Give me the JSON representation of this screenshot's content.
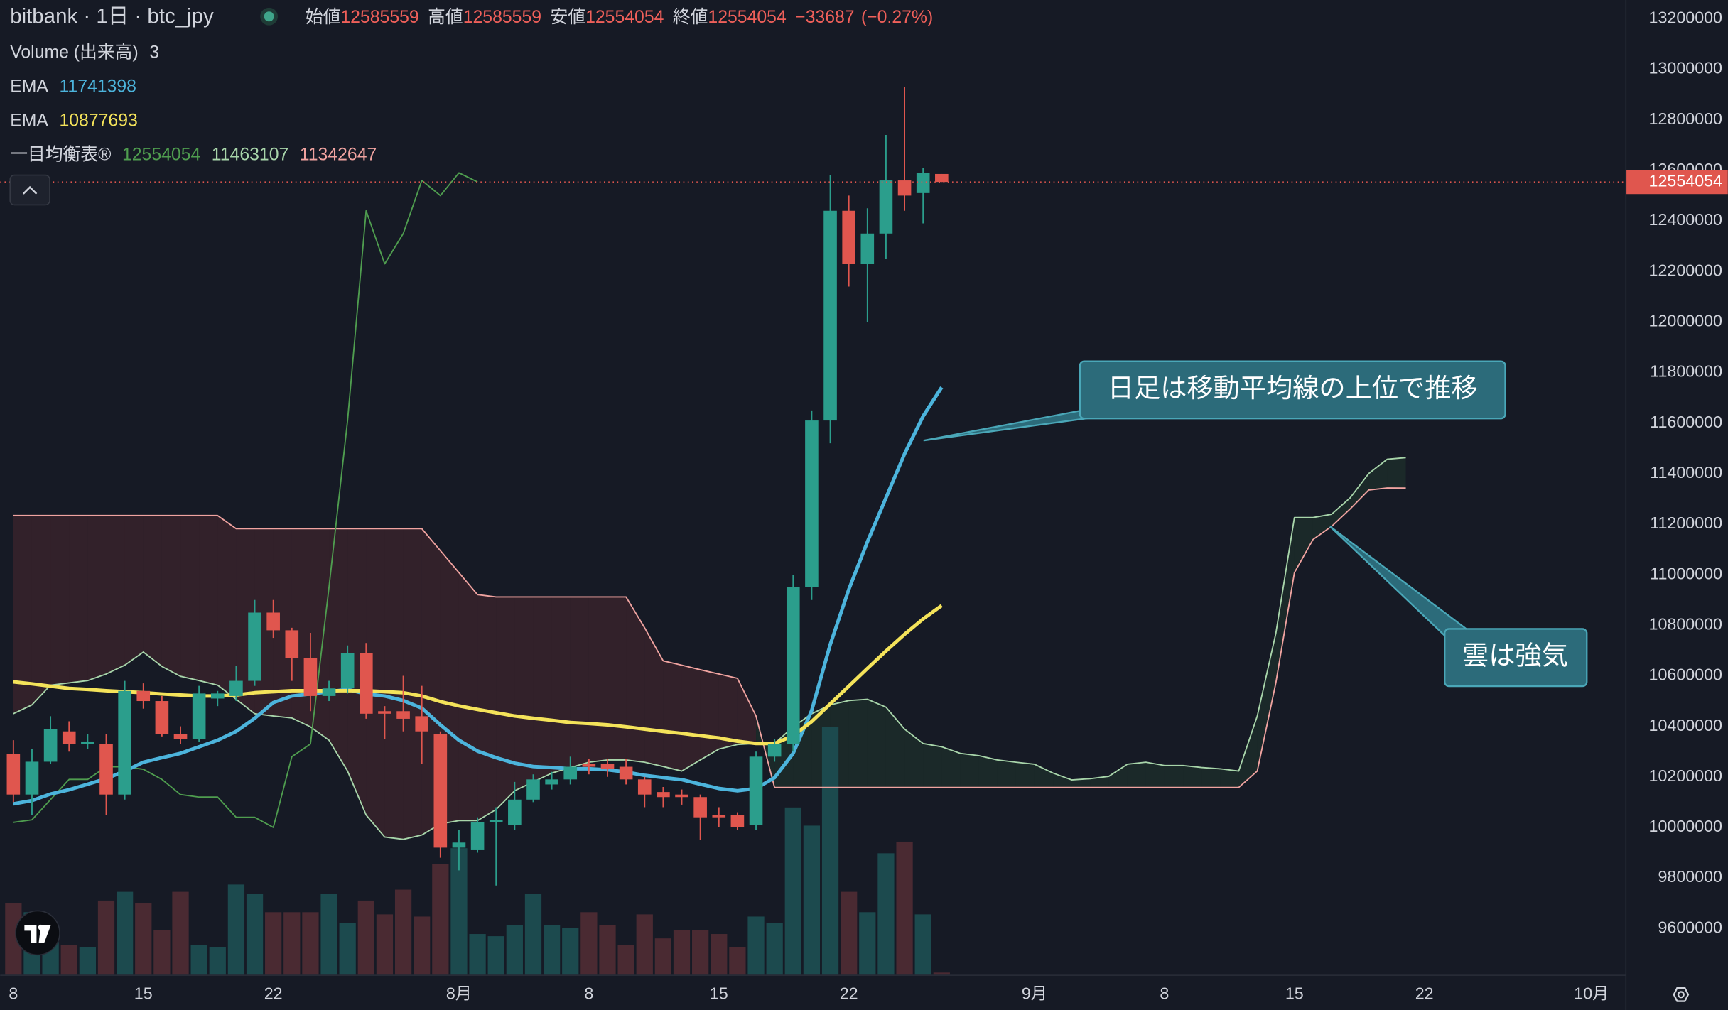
{
  "chart_data": {
    "type": "candlestick",
    "title": "bitbank · 1日 · btc_jpy",
    "header": {
      "open_label": "始値",
      "high_label": "高値",
      "low_label": "安値",
      "close_label": "終値",
      "change": {
        "value": -33687,
        "label": "−33687"
      },
      "change_pct": {
        "value": -0.27,
        "label": "(−0.27%)"
      }
    },
    "categories": [
      "8",
      null,
      null,
      null,
      null,
      null,
      null,
      "15",
      null,
      null,
      null,
      null,
      null,
      null,
      "22",
      null,
      null,
      null,
      null,
      null,
      null,
      null,
      null,
      null,
      "8月",
      null,
      null,
      null,
      null,
      null,
      null,
      "8",
      null,
      null,
      null,
      null,
      null,
      null,
      "15",
      null,
      null,
      null,
      null,
      null,
      null,
      "22",
      null,
      null,
      null,
      null,
      null,
      null,
      null,
      null,
      null,
      "9月",
      null,
      null,
      null,
      null,
      null,
      null,
      "8",
      null,
      null,
      null,
      null,
      null,
      null,
      "15",
      null,
      null,
      null,
      null,
      null,
      null,
      "22",
      null,
      null,
      null,
      null,
      null,
      null,
      null,
      null,
      "10月"
    ],
    "candles": {
      "up_color": "#2b9e8c",
      "down_color": "#e0564e",
      "open": [
        10290000,
        10130000,
        10260000,
        10380000,
        10330000,
        10330000,
        10130000,
        10540000,
        10500000,
        10370000,
        10350000,
        10510000,
        10520000,
        10580000,
        10850000,
        10780000,
        10670000,
        10520000,
        10550000,
        10690000,
        10460000,
        10460000,
        10440000,
        10370000,
        9920000,
        9910000,
        10020000,
        10010000,
        10110000,
        10170000,
        10190000,
        10250000,
        10250000,
        10240000,
        10190000,
        10140000,
        10130000,
        10120000,
        10050000,
        10050000,
        10010000,
        10280000,
        10330000,
        10950000,
        11610000,
        12440000,
        12230000,
        12350000,
        12560000,
        12510000,
        12585559,
        null,
        null,
        null,
        null,
        null,
        null,
        null,
        null,
        null,
        null,
        null,
        null,
        null,
        null,
        null,
        null,
        null,
        null,
        null,
        null,
        null,
        null,
        null,
        null,
        null,
        null,
        null,
        null,
        null,
        null,
        null,
        null,
        null,
        null,
        null
      ],
      "high": [
        10345000,
        10310000,
        10440000,
        10420000,
        10370000,
        10370000,
        10580000,
        10570000,
        10520000,
        10400000,
        10560000,
        10540000,
        10640000,
        10900000,
        10900000,
        10790000,
        10770000,
        10580000,
        10720000,
        10730000,
        10480000,
        10600000,
        10560000,
        10380000,
        9990000,
        10040000,
        10080000,
        10180000,
        10210000,
        10220000,
        10280000,
        10270000,
        10270000,
        10270000,
        10200000,
        10160000,
        10150000,
        10130000,
        10080000,
        10060000,
        10300000,
        10350000,
        11000000,
        11650000,
        12580000,
        12500000,
        12450000,
        12740000,
        12930000,
        12610000,
        12585559,
        null,
        null,
        null,
        null,
        null,
        null,
        null,
        null,
        null,
        null,
        null,
        null,
        null,
        null,
        null,
        null,
        null,
        null,
        null,
        null,
        null,
        null,
        null,
        null,
        null,
        null,
        null,
        null,
        null,
        null,
        null,
        null,
        null,
        null,
        null
      ],
      "low": [
        10100000,
        10050000,
        10250000,
        10300000,
        10310000,
        10050000,
        10110000,
        10470000,
        10360000,
        10330000,
        10340000,
        10480000,
        10500000,
        10560000,
        10750000,
        10580000,
        10460000,
        10500000,
        10530000,
        10430000,
        10350000,
        10380000,
        10250000,
        9880000,
        9830000,
        9900000,
        9770000,
        9990000,
        10100000,
        10150000,
        10170000,
        10210000,
        10200000,
        10170000,
        10080000,
        10080000,
        10090000,
        9950000,
        10000000,
        9990000,
        9990000,
        10260000,
        10300000,
        10900000,
        11520000,
        12140000,
        12000000,
        12250000,
        12440000,
        12390000,
        12554054,
        null,
        null,
        null,
        null,
        null,
        null,
        null,
        null,
        null,
        null,
        null,
        null,
        null,
        null,
        null,
        null,
        null,
        null,
        null,
        null,
        null,
        null,
        null,
        null,
        null,
        null,
        null,
        null,
        null,
        null,
        null,
        null,
        null,
        null,
        null
      ],
      "close": [
        10130000,
        10260000,
        10390000,
        10330000,
        10340000,
        10130000,
        10540000,
        10500000,
        10370000,
        10350000,
        10530000,
        10530000,
        10580000,
        10850000,
        10780000,
        10670000,
        10520000,
        10550000,
        10690000,
        10450000,
        10450000,
        10430000,
        10380000,
        9920000,
        9940000,
        10020000,
        10030000,
        10110000,
        10190000,
        10190000,
        10240000,
        10240000,
        10230000,
        10190000,
        10130000,
        10120000,
        10120000,
        10040000,
        10040000,
        10000000,
        10280000,
        10330000,
        10950000,
        11610000,
        12440000,
        12230000,
        12350000,
        12560000,
        12500000,
        12590000,
        12554054,
        null,
        null,
        null,
        null,
        null,
        null,
        null,
        null,
        null,
        null,
        null,
        null,
        null,
        null,
        null,
        null,
        null,
        null,
        null,
        null,
        null,
        null,
        null,
        null,
        null,
        null,
        null,
        null,
        null,
        null,
        null,
        null,
        null,
        null,
        null
      ]
    },
    "volume": {
      "name": "Volume (出来高)",
      "lim": [
        0,
        1340
      ],
      "up_color": "#1c4a4e",
      "down_color": "#4a2a32",
      "values": [
        98,
        86,
        45,
        41,
        38,
        102,
        114,
        98,
        61,
        114,
        41,
        38,
        124,
        111,
        86,
        86,
        86,
        111,
        71,
        102,
        83,
        117,
        80,
        152,
        174,
        56,
        53,
        68,
        111,
        68,
        64,
        86,
        68,
        41,
        83,
        50,
        61,
        61,
        56,
        38,
        80,
        71,
        230,
        205,
        341,
        114,
        86,
        167,
        183,
        83,
        3,
        null,
        null,
        null,
        null,
        null,
        null,
        null,
        null,
        null,
        null,
        null,
        null,
        null,
        null,
        null,
        null,
        null,
        null,
        null,
        null,
        null,
        null,
        null,
        null,
        null,
        null,
        null,
        null,
        null,
        null,
        null,
        null,
        null,
        null,
        null
      ]
    },
    "ema": [
      {
        "name": "EMA",
        "color": "#4cb4dc",
        "values": [
          10093000,
          10106000,
          10132000,
          10149000,
          10171000,
          10193000,
          10223000,
          10258000,
          10276000,
          10293000,
          10319000,
          10345000,
          10380000,
          10432000,
          10494000,
          10520000,
          10528000,
          10537000,
          10546000,
          10528000,
          10520000,
          10502000,
          10472000,
          10406000,
          10345000,
          10302000,
          10276000,
          10254000,
          10241000,
          10237000,
          10232000,
          10232000,
          10228000,
          10219000,
          10206000,
          10197000,
          10189000,
          10171000,
          10154000,
          10145000,
          10154000,
          10197000,
          10293000,
          10463000,
          10724000,
          10942000,
          11130000,
          11304000,
          11478000,
          11627000,
          11741398,
          null,
          null,
          null,
          null,
          null,
          null,
          null,
          null,
          null,
          null,
          null,
          null,
          null,
          null,
          null,
          null,
          null,
          null,
          null,
          null,
          null,
          null,
          null,
          null,
          null,
          null,
          null,
          null,
          null,
          null,
          null,
          null,
          null,
          null,
          null
        ]
      },
      {
        "name": "EMA",
        "color": "#f4e35a",
        "values": [
          10576000,
          10568000,
          10559000,
          10550000,
          10546000,
          10541000,
          10537000,
          10533000,
          10528000,
          10524000,
          10520000,
          10520000,
          10524000,
          10533000,
          10537000,
          10541000,
          10541000,
          10541000,
          10541000,
          10541000,
          10537000,
          10533000,
          10520000,
          10498000,
          10481000,
          10467000,
          10454000,
          10441000,
          10432000,
          10424000,
          10415000,
          10411000,
          10406000,
          10398000,
          10389000,
          10380000,
          10372000,
          10363000,
          10354000,
          10341000,
          10332000,
          10332000,
          10363000,
          10419000,
          10489000,
          10559000,
          10629000,
          10698000,
          10764000,
          10825000,
          10877693,
          null,
          null,
          null,
          null,
          null,
          null,
          null,
          null,
          null,
          null,
          null,
          null,
          null,
          null,
          null,
          null,
          null,
          null,
          null,
          null,
          null,
          null,
          null,
          null,
          null,
          null,
          null,
          null,
          null,
          null,
          null,
          null,
          null,
          null,
          null
        ]
      }
    ],
    "ichimoku": {
      "name": "一目均衡表®",
      "cloud_up_color": "rgba(76,175,80,0.10)",
      "cloud_down_color": "rgba(239,83,80,0.13)",
      "lines": [
        {
          "color": "#4f9d4f",
          "values": [
            10020000,
            10030000,
            10110000,
            10190000,
            10190000,
            10240000,
            10240000,
            10230000,
            10190000,
            10130000,
            10120000,
            10120000,
            10040000,
            10040000,
            10000000,
            10280000,
            10330000,
            10950000,
            11610000,
            12440000,
            12230000,
            12350000,
            12560000,
            12500000,
            12590000,
            12554054,
            null,
            null,
            null,
            null,
            null,
            null,
            null,
            null,
            null,
            null,
            null,
            null,
            null,
            null,
            null,
            null,
            null,
            null,
            null,
            null,
            null,
            null,
            null,
            null,
            null,
            null,
            null,
            null,
            null,
            null,
            null,
            null,
            null,
            null,
            null,
            null,
            null,
            null,
            null,
            null,
            null,
            null,
            null,
            null,
            null,
            null,
            null,
            null,
            null,
            null,
            null,
            null,
            null,
            null,
            null,
            null,
            null,
            null,
            null,
            null
          ]
        },
        {
          "color": "#a8d5aa",
          "values": [
            10450000,
            10485000,
            10563000,
            10572000,
            10581000,
            10607000,
            10642000,
            10694000,
            10637000,
            10598000,
            10581000,
            10563000,
            10507000,
            10450000,
            10441000,
            10433000,
            10398000,
            10345000,
            10223000,
            10049000,
            9962000,
            9953000,
            9970000,
            10014000,
            10027000,
            10027000,
            10071000,
            10145000,
            10180000,
            10215000,
            10237000,
            10258000,
            10267000,
            10267000,
            10258000,
            10241000,
            10223000,
            10267000,
            10310000,
            10328000,
            10332000,
            10332000,
            10398000,
            10450000,
            10485000,
            10502000,
            10507000,
            10476000,
            10389000,
            10332000,
            10319000,
            10293000,
            10284000,
            10267000,
            10258000,
            10250000,
            10215000,
            10188000,
            10193000,
            10202000,
            10250000,
            10258000,
            10245000,
            10245000,
            10237000,
            10232000,
            10223000,
            10441000,
            10768000,
            11226000,
            11226000,
            11239000,
            11304000,
            11400000,
            11457000,
            11463107,
            null,
            null,
            null,
            null,
            null,
            null,
            null,
            null,
            null,
            null
          ]
        },
        {
          "color": "#f0a3a0",
          "values": [
            11234000,
            11234000,
            11234000,
            11234000,
            11234000,
            11234000,
            11234000,
            11234000,
            11234000,
            11234000,
            11234000,
            11234000,
            11182000,
            11182000,
            11182000,
            11182000,
            11182000,
            11182000,
            11182000,
            11182000,
            11182000,
            11182000,
            11182000,
            11095000,
            11008000,
            10921000,
            10912000,
            10912000,
            10912000,
            10912000,
            10912000,
            10912000,
            10912000,
            10912000,
            10790000,
            10659000,
            10642000,
            10624000,
            10607000,
            10590000,
            10441000,
            10158000,
            10158000,
            10158000,
            10158000,
            10158000,
            10158000,
            10158000,
            10158000,
            10158000,
            10158000,
            10158000,
            10158000,
            10158000,
            10158000,
            10158000,
            10158000,
            10158000,
            10158000,
            10158000,
            10158000,
            10158000,
            10158000,
            10158000,
            10158000,
            10158000,
            10158000,
            10223000,
            10572000,
            11008000,
            11139000,
            11191000,
            11260000,
            11335000,
            11343000,
            11342647,
            null,
            null,
            null,
            null,
            null,
            null,
            null,
            null,
            null,
            null
          ]
        }
      ]
    },
    "ylim": [
      9417000,
      13274000
    ],
    "yticks": [
      9600000,
      9800000,
      10000000,
      10200000,
      10400000,
      10600000,
      10800000,
      11000000,
      11200000,
      11400000,
      11600000,
      11800000,
      12000000,
      12200000,
      12400000,
      12600000,
      12800000,
      13000000,
      13200000
    ],
    "grid": false,
    "annotations": [
      {
        "text": "日足は移動平均線の上位で推移"
      },
      {
        "text": "雲は強気"
      }
    ]
  }
}
